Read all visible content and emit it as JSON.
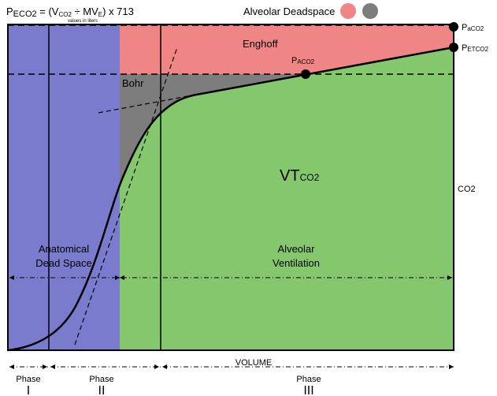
{
  "header": {
    "formula_main": "P",
    "formula_sub": "ECO2",
    "formula_rest": " = (V",
    "formula_co2": "CO2",
    "formula_mid": " ÷ MV",
    "formula_e": "E",
    "formula_end": ") x 713",
    "formula_note": "values in liters",
    "legend_title": "Alveolar Deadspace"
  },
  "colors": {
    "anatomical": "#7b7bce",
    "enghoff": "#f08585",
    "bohr": "#7d7d7d",
    "alveolar": "#85c76d",
    "legend_pink": "#f08585",
    "legend_gray": "#7d7d7d"
  },
  "regions": {
    "enghoff": "Enghoff",
    "bohr": "Bohr",
    "vt_main": "VT",
    "vt_sub": "CO2",
    "anatomical_line1": "Anatomical",
    "anatomical_line2": "Dead Space",
    "alveolar_line1": "Alveolar",
    "alveolar_line2": "Ventilation"
  },
  "points": {
    "paco2_p": "P",
    "paco2_sub": "aCO2",
    "petco2_p": "P",
    "petco2_sub": "ETCO2",
    "pAco2_p": "P",
    "pAco2_sub": "ACO2"
  },
  "axes": {
    "x_label": "VOLUME",
    "y_label": "CO2"
  },
  "phases": [
    {
      "label": "Phase",
      "numeral": "I"
    },
    {
      "label": "Phase",
      "numeral": "II"
    },
    {
      "label": "Phase",
      "numeral": "III"
    }
  ]
}
